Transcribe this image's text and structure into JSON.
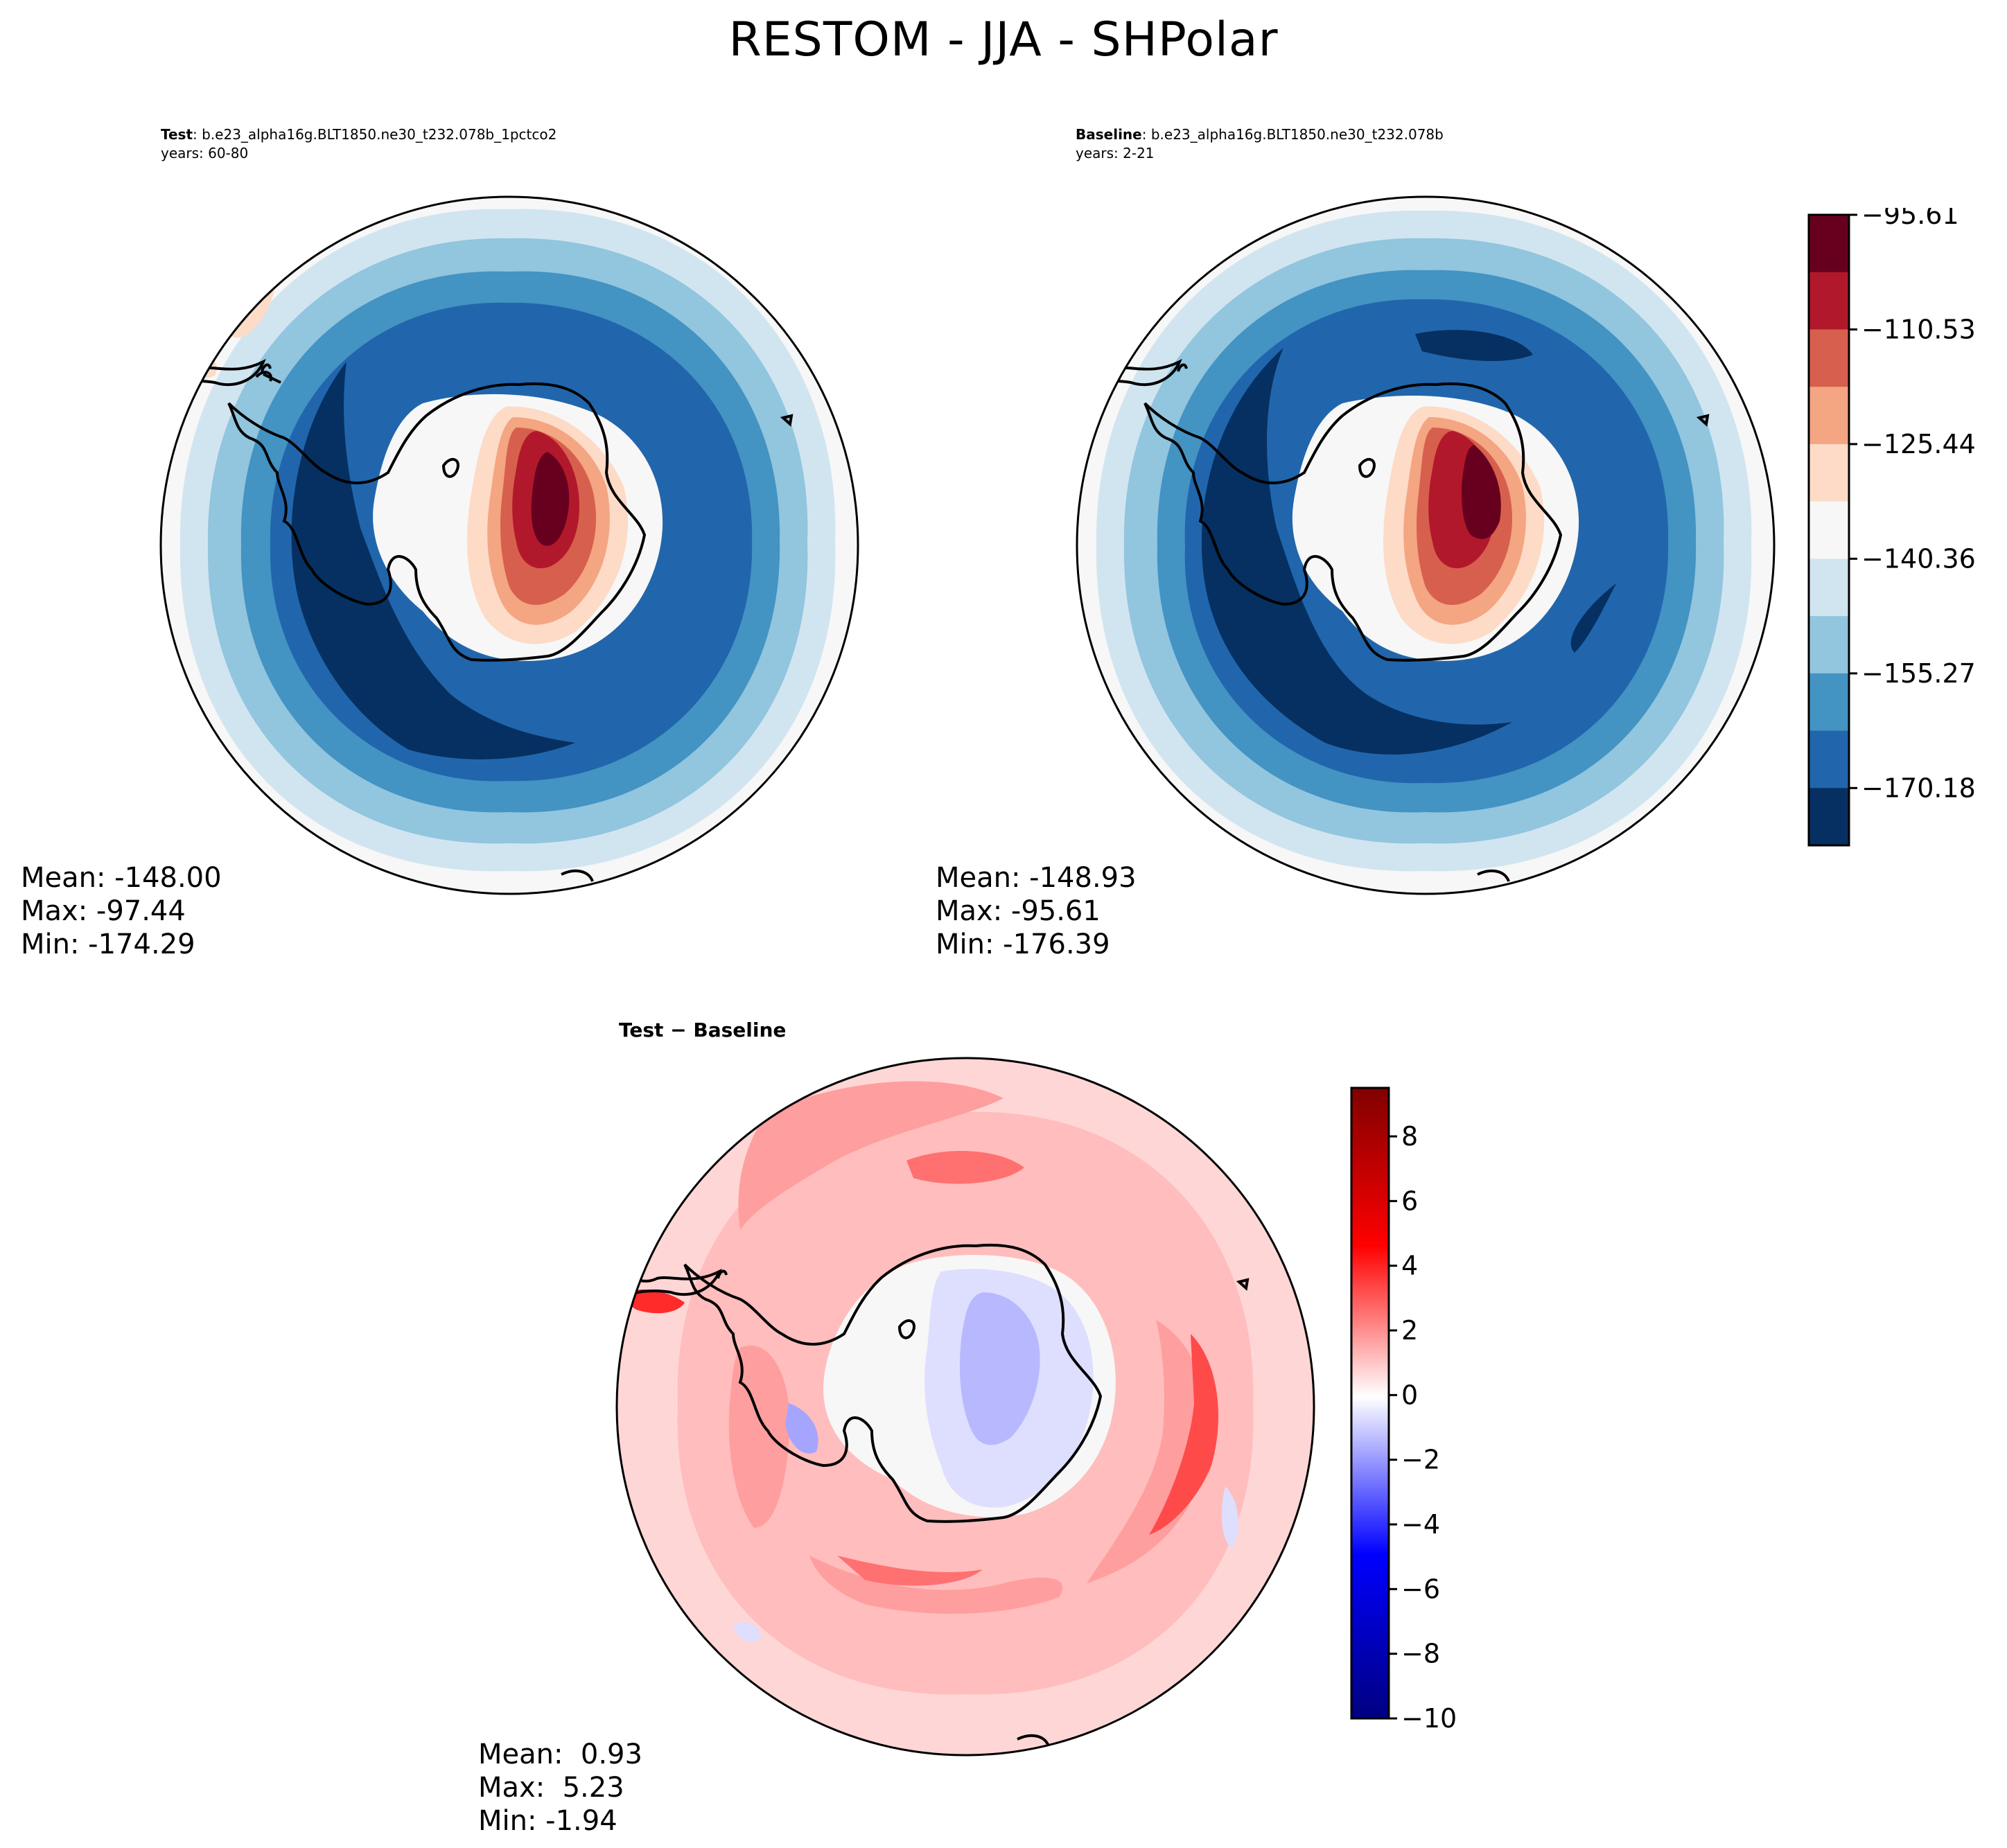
{
  "figure": {
    "title": "RESTOM - JJA - SHPolar"
  },
  "panels": {
    "test": {
      "label_bold": "Test",
      "label_rest": ": b.e23_alpha16g.BLT1850.ne30_t232.078b_1pctco2",
      "years": "years: 60-80",
      "stats": {
        "mean": "Mean: -148.00",
        "max": "Max: -97.44",
        "min": "Min: -174.29"
      }
    },
    "baseline": {
      "label_bold": "Baseline",
      "label_rest": ": b.e23_alpha16g.BLT1850.ne30_t232.078b",
      "years": "years: 2-21",
      "stats": {
        "mean": "Mean: -148.93",
        "max": "Max: -95.61",
        "min": "Min: -176.39"
      }
    },
    "diff": {
      "label": "Test − Baseline",
      "stats": {
        "mean": "Mean:  0.93",
        "max": "Max:  5.23",
        "min": "Min: -1.94"
      }
    }
  },
  "colorbars": {
    "main": {
      "tick_labels": [
        "−95.61",
        "−110.53",
        "−125.44",
        "−140.36",
        "−155.27",
        "−170.18"
      ],
      "colors": [
        "#67001f",
        "#b2182b",
        "#d6604d",
        "#f4a582",
        "#fddbc7",
        "#f7f7f7",
        "#d1e5f0",
        "#92c5de",
        "#4393c3",
        "#2166ac",
        "#053061"
      ]
    },
    "diff": {
      "tick_labels": [
        "8",
        "6",
        "4",
        "2",
        "0",
        "−2",
        "−4",
        "−6",
        "−8",
        "−10"
      ],
      "range": [
        -10,
        9.5
      ]
    }
  }
}
